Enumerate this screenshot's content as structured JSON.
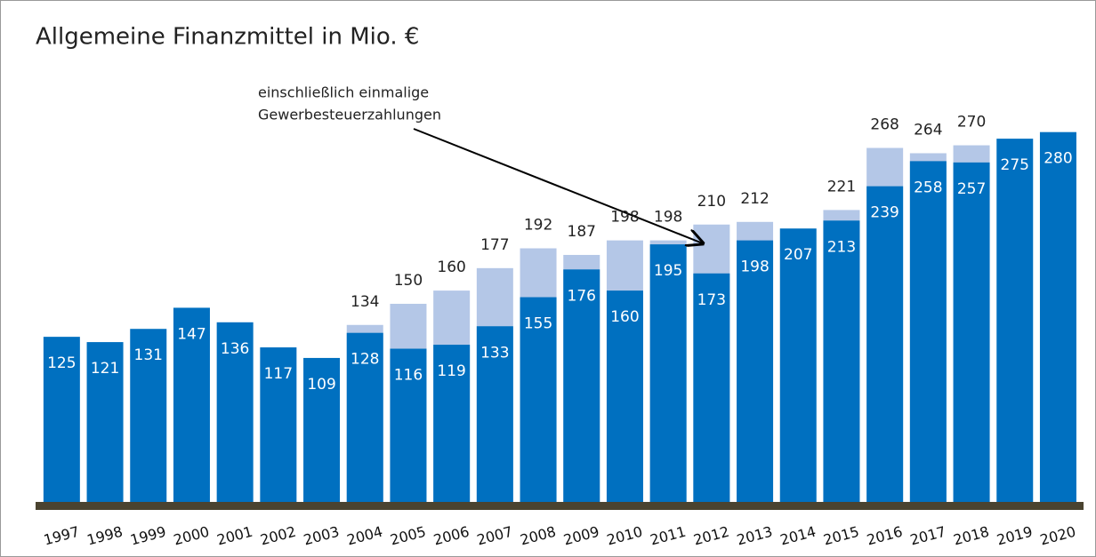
{
  "chart_data": {
    "type": "bar",
    "title": "Allgemeine Finanzmittel in Mio. €",
    "annotation": [
      "einschließlich einmalige",
      "Gewerbesteuerzahlungen"
    ],
    "categories": [
      "1997",
      "1998",
      "1999",
      "2000",
      "2001",
      "2002",
      "2003",
      "2004",
      "2005",
      "2006",
      "2007",
      "2008",
      "2009",
      "2010",
      "2011",
      "2012",
      "2013",
      "2014",
      "2015",
      "2016",
      "2017",
      "2018",
      "2019",
      "2020"
    ],
    "series": [
      {
        "color": "#b4c7e7",
        "values": [
          null,
          null,
          null,
          null,
          null,
          null,
          null,
          134,
          150,
          160,
          177,
          192,
          187,
          198,
          198,
          210,
          212,
          null,
          221,
          268,
          264,
          270,
          null,
          null
        ]
      },
      {
        "color": "#0070c0",
        "values": [
          125,
          121,
          131,
          147,
          136,
          117,
          109,
          128,
          116,
          119,
          133,
          155,
          176,
          160,
          195,
          173,
          198,
          207,
          213,
          239,
          258,
          257,
          275,
          280
        ]
      }
    ],
    "ylim": [
      0,
      380
    ]
  }
}
